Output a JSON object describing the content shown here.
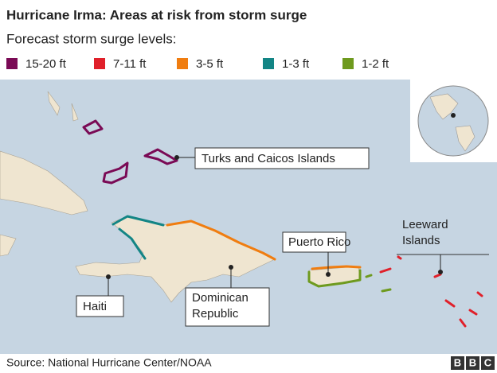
{
  "title": "Hurricane Irma: Areas at risk from storm surge",
  "subtitle": "Forecast storm surge levels:",
  "legend": [
    {
      "label": "15-20 ft",
      "color": "#7a0a55"
    },
    {
      "label": "7-11 ft",
      "color": "#e0202a"
    },
    {
      "label": "3-5 ft",
      "color": "#f07d10"
    },
    {
      "label": "1-3 ft",
      "color": "#138585"
    },
    {
      "label": "1-2 ft",
      "color": "#6e9a1e"
    }
  ],
  "places": [
    {
      "lines": [
        "Turks and Caicos Islands"
      ]
    },
    {
      "lines": [
        "Haiti"
      ]
    },
    {
      "lines": [
        "Dominican",
        "Republic"
      ]
    },
    {
      "lines": [
        "Puerto Rico"
      ]
    },
    {
      "lines": [
        "Leeward",
        "Islands"
      ]
    }
  ],
  "source": "Source: National Hurricane Center/NOAA",
  "logo": [
    "B",
    "B",
    "C"
  ]
}
